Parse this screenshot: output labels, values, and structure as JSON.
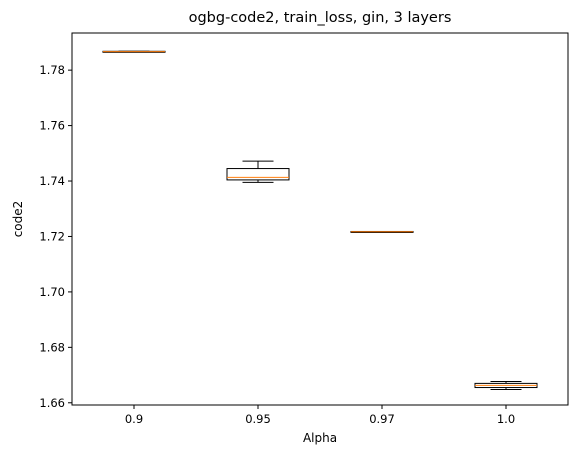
{
  "chart_data": {
    "type": "box",
    "title": "ogbg-code2, train_loss, gin, 3 layers",
    "xlabel": "Alpha",
    "ylabel": "code2",
    "categories": [
      "0.9",
      "0.95",
      "0.97",
      "1.0"
    ],
    "ylim": [
      1.6592,
      1.7934
    ],
    "yticks": [
      1.66,
      1.68,
      1.7,
      1.72,
      1.74,
      1.76,
      1.78
    ],
    "ytick_labels": [
      "1.66",
      "1.68",
      "1.70",
      "1.72",
      "1.74",
      "1.76",
      "1.78"
    ],
    "boxes": [
      {
        "category": "0.9",
        "whislo": 1.7866,
        "q1": 1.7866,
        "med": 1.7867,
        "q3": 1.7868,
        "whishi": 1.7868
      },
      {
        "category": "0.95",
        "whislo": 1.7395,
        "q1": 1.7404,
        "med": 1.7413,
        "q3": 1.7445,
        "whishi": 1.7472
      },
      {
        "category": "0.97",
        "whislo": 1.7216,
        "q1": 1.7216,
        "med": 1.7217,
        "q3": 1.7218,
        "whishi": 1.7218
      },
      {
        "category": "1.0",
        "whislo": 1.6648,
        "q1": 1.6655,
        "med": 1.6663,
        "q3": 1.667,
        "whishi": 1.6677
      }
    ],
    "box_edge_color": "#000000",
    "median_color": "#ff7f0e",
    "grid": false,
    "legend": "none"
  }
}
